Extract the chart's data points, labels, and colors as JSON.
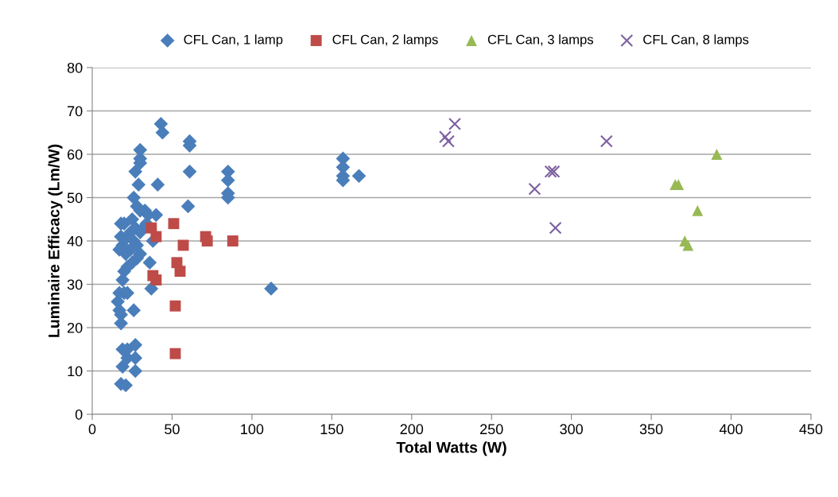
{
  "chart_data": {
    "type": "scatter",
    "xlabel": "Total Watts (W)",
    "ylabel": "Luminaire Efficacy (Lm/W)",
    "xlim": [
      0,
      450
    ],
    "xticks": [
      0,
      50,
      100,
      150,
      200,
      250,
      300,
      350,
      400,
      450
    ],
    "ylim": [
      0,
      80
    ],
    "yticks": [
      0,
      10,
      20,
      30,
      40,
      50,
      60,
      70,
      80
    ],
    "grid": "y",
    "legend": "top",
    "series": [
      {
        "name": "CFL Can, 1 lamp",
        "color": "#4a7ebb",
        "marker": "diamond",
        "x": [
          43,
          44,
          30,
          30,
          30,
          27,
          29,
          41,
          61,
          61,
          61,
          60,
          85,
          85,
          85,
          85,
          157,
          157,
          157,
          157,
          167,
          112,
          18,
          20,
          25,
          26,
          28,
          30,
          33,
          35,
          40,
          38,
          36,
          37,
          27,
          24,
          22,
          18,
          19,
          17,
          21,
          28,
          30,
          28,
          25,
          22,
          20,
          19,
          20,
          22,
          17,
          16,
          17,
          18,
          18,
          26,
          19,
          22,
          27,
          22,
          27,
          19,
          27,
          18,
          21,
          32,
          30,
          26,
          34,
          24
        ],
        "values": [
          67,
          65,
          61,
          59,
          58,
          56,
          53,
          53,
          63,
          62,
          56,
          48,
          56,
          54,
          51,
          50,
          59,
          57,
          55,
          54,
          55,
          29,
          44,
          44,
          45,
          50,
          48,
          47,
          47,
          46,
          46,
          40,
          35,
          29,
          43,
          42,
          41,
          41,
          39,
          38,
          37,
          39,
          37,
          36,
          35,
          34,
          33,
          31,
          28,
          28,
          28,
          26,
          24,
          23,
          21,
          24,
          15,
          15,
          16,
          13,
          13,
          11,
          10,
          7,
          6.7,
          43,
          42,
          40,
          44,
          38
        ]
      },
      {
        "name": "CFL Can, 2 lamps",
        "color": "#be4b48",
        "marker": "square",
        "x": [
          37,
          51,
          40,
          38,
          40,
          57,
          53,
          55,
          71,
          72,
          88,
          52,
          52
        ],
        "values": [
          43,
          44,
          41,
          32,
          31,
          39,
          35,
          33,
          41,
          40,
          40,
          25,
          14
        ]
      },
      {
        "name": "CFL Can, 3 lamps",
        "color": "#98b954",
        "marker": "triangle",
        "x": [
          365,
          367,
          379,
          391,
          371,
          373
        ],
        "values": [
          53,
          53,
          47,
          60,
          40,
          39
        ]
      },
      {
        "name": "CFL Can, 8 lamps",
        "color": "#7d60a0",
        "marker": "cross",
        "x": [
          227,
          221,
          223,
          287,
          289,
          277,
          290,
          322
        ],
        "values": [
          67,
          64,
          63,
          56,
          56,
          52,
          43,
          63
        ]
      }
    ]
  }
}
